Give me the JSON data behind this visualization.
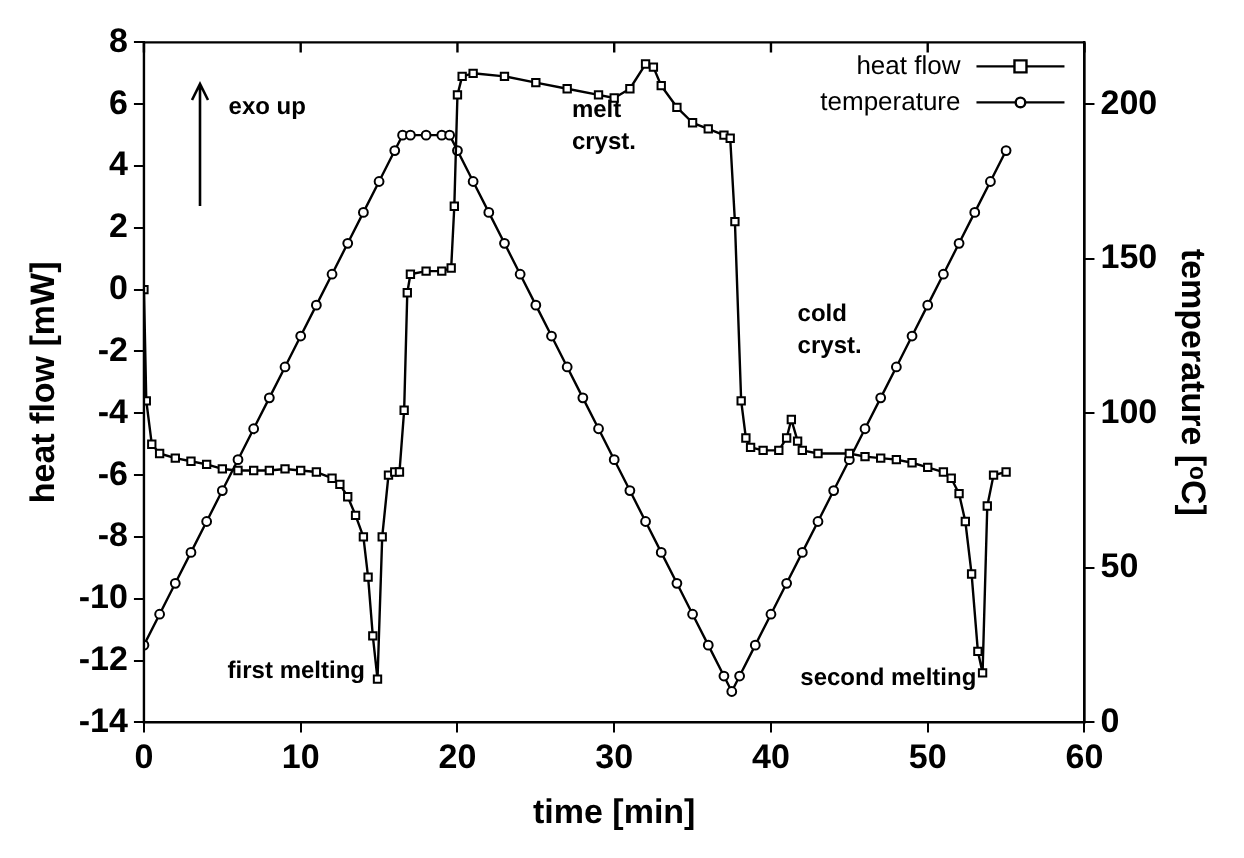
{
  "chart_data": {
    "type": "line",
    "xlabel": "time [min]",
    "ylabel": "heat flow [mW]",
    "y2label": "temperature [ᵒC]",
    "xlim": [
      0,
      60
    ],
    "xticks": [
      0,
      10,
      20,
      30,
      40,
      50,
      60
    ],
    "ylim": [
      -14,
      8
    ],
    "yticks": [
      -14,
      -12,
      -10,
      -8,
      -6,
      -4,
      -2,
      0,
      2,
      4,
      6,
      8
    ],
    "y2lim": [
      0,
      220
    ],
    "y2ticks": [
      0,
      50,
      100,
      150,
      200
    ],
    "legend": "top right",
    "grid": false,
    "line_style": "solid",
    "annotations": [
      "exo up",
      "melt\ncryst.",
      "cold\ncryst.",
      "first melting",
      "second melting"
    ],
    "series": [
      {
        "name": "heat flow",
        "color": "#000000",
        "marker": "square",
        "x": [
          0,
          0.15,
          0.5,
          1,
          2,
          3,
          4,
          5,
          6,
          7,
          8,
          9,
          10,
          11,
          12,
          12.5,
          13,
          13.5,
          14,
          14.3,
          14.6,
          14.9,
          15.2,
          15.6,
          16,
          16.3,
          16.6,
          16.8,
          17,
          18,
          19,
          19.6,
          19.8,
          20,
          20.3,
          21,
          23,
          25,
          27,
          29,
          30,
          31,
          32,
          32.5,
          33,
          34,
          35,
          36,
          37,
          37.4,
          37.7,
          38.1,
          38.4,
          38.7,
          39.5,
          40.5,
          41,
          41.3,
          41.7,
          42,
          43,
          45,
          46,
          47,
          48,
          49,
          50,
          51,
          51.5,
          52,
          52.4,
          52.8,
          53.2,
          53.5,
          53.8,
          54.2,
          55
        ],
        "values": [
          0,
          -3.6,
          -5.0,
          -5.3,
          -5.45,
          -5.55,
          -5.65,
          -5.8,
          -5.85,
          -5.85,
          -5.85,
          -5.8,
          -5.85,
          -5.9,
          -6.1,
          -6.3,
          -6.7,
          -7.3,
          -8.0,
          -9.3,
          -11.2,
          -12.6,
          -8.0,
          -6.0,
          -5.9,
          -5.9,
          -3.9,
          -0.1,
          0.5,
          0.6,
          0.6,
          0.7,
          2.7,
          6.3,
          6.9,
          7.0,
          6.9,
          6.7,
          6.5,
          6.3,
          6.2,
          6.5,
          7.3,
          7.2,
          6.6,
          5.9,
          5.4,
          5.2,
          5.0,
          4.9,
          2.2,
          -3.6,
          -4.8,
          -5.1,
          -5.2,
          -5.2,
          -4.8,
          -4.2,
          -4.9,
          -5.2,
          -5.3,
          -5.3,
          -5.4,
          -5.45,
          -5.5,
          -5.6,
          -5.75,
          -5.9,
          -6.1,
          -6.6,
          -7.5,
          -9.2,
          -11.7,
          -12.4,
          -7.0,
          -6.0,
          -5.9
        ]
      },
      {
        "name": "temperature",
        "color": "#000000",
        "marker": "circle",
        "axis": "y2",
        "x": [
          0,
          1,
          2,
          3,
          4,
          5,
          6,
          7,
          8,
          9,
          10,
          11,
          12,
          13,
          14,
          15,
          16,
          16.5,
          17,
          18,
          19,
          19.5,
          20,
          21,
          22,
          23,
          24,
          25,
          26,
          27,
          28,
          29,
          30,
          31,
          32,
          33,
          34,
          35,
          36,
          37,
          37.5,
          38,
          39,
          40,
          41,
          42,
          43,
          44,
          45,
          46,
          47,
          48,
          49,
          50,
          51,
          52,
          53,
          54,
          55
        ],
        "values": [
          25,
          35,
          45,
          55,
          65,
          75,
          85,
          95,
          105,
          115,
          125,
          135,
          145,
          155,
          165,
          175,
          185,
          190,
          190,
          190,
          190,
          190,
          185,
          175,
          165,
          155,
          145,
          135,
          125,
          115,
          105,
          95,
          85,
          75,
          65,
          55,
          45,
          35,
          25,
          15,
          10,
          15,
          25,
          35,
          45,
          55,
          65,
          75,
          85,
          95,
          105,
          115,
          125,
          135,
          145,
          155,
          165,
          175,
          185
        ]
      }
    ]
  }
}
